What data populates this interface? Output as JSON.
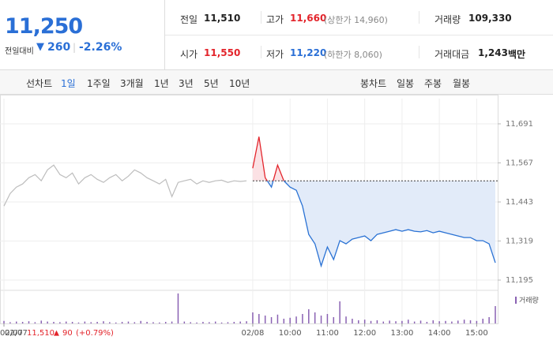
{
  "header": {
    "price": "11,250",
    "change_label": "전일대비",
    "change": "260",
    "change_rate": "-2.26%"
  },
  "stats": [
    {
      "label": "전일",
      "value": "11,510"
    },
    {
      "label": "고가",
      "value": "11,660",
      "note": "(상한가 14,960)"
    },
    {
      "label": "거래량",
      "value": "109,330"
    },
    {
      "label": "시가",
      "value": "11,550"
    },
    {
      "label": "저가",
      "value": "11,220",
      "note": "(하한가 8,060)"
    },
    {
      "label": "거래대금",
      "value": "1,243",
      "unit": "백만"
    }
  ],
  "tabs": {
    "line_label": "선차트",
    "line_periods": [
      "1일",
      "1주일",
      "3개월",
      "1년",
      "3년",
      "5년",
      "10년"
    ],
    "candle_label": "봉차트",
    "candle_periods": [
      "일봉",
      "주봉",
      "월봉"
    ]
  },
  "prev_day": {
    "date": "02/07",
    "price": "11,510",
    "change": "90",
    "change_rate": "(+0.79%)"
  },
  "chart_data": {
    "type": "line",
    "categories": [
      "02/07",
      null,
      null,
      null,
      null,
      null,
      null,
      null,
      null,
      null,
      null,
      null,
      null,
      null,
      null,
      null,
      null,
      null,
      null,
      null,
      null,
      null,
      null,
      null,
      null,
      null,
      null,
      null,
      null,
      null,
      null,
      null,
      null,
      null,
      null,
      null,
      null,
      null,
      null,
      null,
      "02/08",
      null,
      null,
      null,
      null,
      null,
      "10:00",
      null,
      null,
      null,
      null,
      null,
      "11:00",
      null,
      null,
      null,
      null,
      null,
      "12:00",
      null,
      null,
      null,
      null,
      null,
      "13:00",
      null,
      null,
      null,
      null,
      null,
      "14:00",
      null,
      null,
      null,
      null,
      null,
      "15:00",
      null,
      null,
      null
    ],
    "ylim": [
      11170,
      11721
    ],
    "yticks": [
      {
        "value": 11691,
        "label": "11,691"
      },
      {
        "value": 11567,
        "label": "11,567"
      },
      {
        "value": 11443,
        "label": "11,443"
      },
      {
        "value": 11319,
        "label": "11,319"
      },
      {
        "value": 11195,
        "label": "11,195"
      }
    ],
    "y2lim": [
      0,
      100
    ],
    "baseline": 11510,
    "grid": true,
    "up_color": "#e3242b",
    "series": [
      {
        "color": "#bdbdbd",
        "values": [
          11430,
          11470,
          11490,
          11500,
          11520,
          11530,
          11510,
          11545,
          11560,
          11530,
          11520,
          11535,
          11500,
          11520,
          11530,
          11515,
          11505,
          11520,
          11530,
          11510,
          11525,
          11545,
          11535,
          11520,
          11510,
          11500,
          11515,
          11460,
          11505,
          11510,
          11515,
          11500,
          11510,
          11505,
          11510,
          11512,
          11505,
          11510,
          11508,
          11510,
          null,
          null,
          null,
          null,
          null,
          null,
          null,
          null,
          null,
          null,
          null,
          null,
          null,
          null,
          null,
          null,
          null,
          null,
          null,
          null,
          null,
          null,
          null,
          null,
          null,
          null,
          null,
          null,
          null,
          null,
          null,
          null,
          null,
          null,
          null,
          null,
          null,
          null,
          null,
          null
        ]
      },
      {
        "color": "#2a72d4",
        "values": [
          null,
          null,
          null,
          null,
          null,
          null,
          null,
          null,
          null,
          null,
          null,
          null,
          null,
          null,
          null,
          null,
          null,
          null,
          null,
          null,
          null,
          null,
          null,
          null,
          null,
          null,
          null,
          null,
          null,
          null,
          null,
          null,
          null,
          null,
          null,
          null,
          null,
          null,
          null,
          null,
          11550,
          11650,
          11520,
          11490,
          11560,
          11510,
          11490,
          11480,
          11430,
          11340,
          11310,
          11240,
          11300,
          11260,
          11320,
          11310,
          11325,
          11330,
          11335,
          11320,
          11340,
          11345,
          11350,
          11355,
          11350,
          11355,
          11350,
          11348,
          11352,
          11345,
          11350,
          11345,
          11340,
          11335,
          11330,
          11330,
          11320,
          11320,
          11310,
          11250
        ]
      },
      {
        "name": "거래량",
        "color": "#8a62b3",
        "axis": "y2",
        "values": [
          8,
          4,
          6,
          5,
          7,
          4,
          9,
          6,
          5,
          4,
          6,
          5,
          3,
          6,
          4,
          5,
          7,
          4,
          3,
          5,
          6,
          4,
          8,
          5,
          4,
          3,
          5,
          6,
          95,
          6,
          4,
          3,
          5,
          4,
          6,
          3,
          4,
          5,
          6,
          7,
          35,
          30,
          25,
          20,
          28,
          15,
          18,
          22,
          30,
          45,
          35,
          25,
          30,
          20,
          70,
          22,
          15,
          10,
          12,
          8,
          10,
          6,
          9,
          7,
          8,
          12,
          6,
          9,
          5,
          10,
          7,
          8,
          6,
          9,
          12,
          10,
          8,
          15,
          20,
          55
        ]
      }
    ]
  }
}
